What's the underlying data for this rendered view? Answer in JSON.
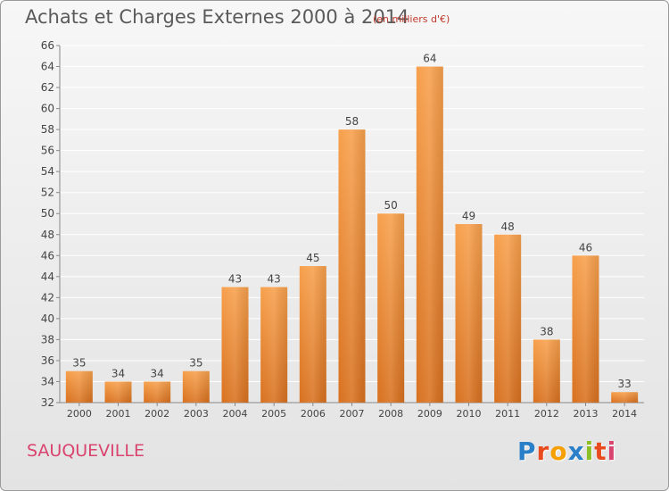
{
  "header": {
    "title": "Achats et Charges Externes 2000 à 2014",
    "unit": "(en milliers d'€)"
  },
  "footer": {
    "commune": "SAUQUEVILLE",
    "brand": "Proxiti",
    "brand_colors": [
      "#2a7fc9",
      "#e84c1e",
      "#f5a000",
      "#2a7fc9",
      "#8cbf26",
      "#e84c1e",
      "#d9446e"
    ]
  },
  "colors": {
    "bar_top": "#f7a04c",
    "bar_bottom": "#d8711f",
    "grid": "#ffffff",
    "text": "#444444"
  },
  "chart_data": {
    "type": "bar",
    "title": "Achats et Charges Externes 2000 à 2014",
    "categories": [
      "2000",
      "2001",
      "2002",
      "2003",
      "2004",
      "2005",
      "2006",
      "2007",
      "2008",
      "2009",
      "2010",
      "2011",
      "2012",
      "2013",
      "2014"
    ],
    "values": [
      35,
      34,
      34,
      35,
      43,
      43,
      45,
      58,
      50,
      64,
      49,
      48,
      38,
      46,
      33
    ],
    "ylim": [
      32,
      66
    ],
    "yticks": [
      32,
      34,
      36,
      38,
      40,
      42,
      44,
      46,
      48,
      50,
      52,
      54,
      56,
      58,
      60,
      62,
      64,
      66
    ],
    "grid": true,
    "data_labels": true
  }
}
